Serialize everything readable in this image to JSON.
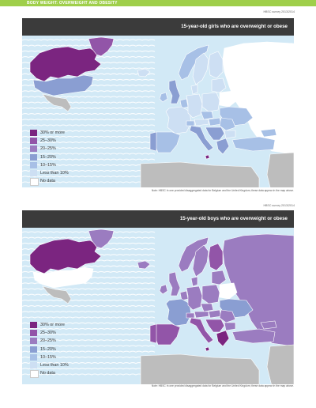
{
  "header": {
    "section_title": "BODY WEIGHT: OVERWEIGHT AND OBESITY"
  },
  "colors": {
    "accent_bar": "#9fcf4a",
    "title_bar": "#3b3b3b",
    "ocean": "#d2e9f6",
    "no_data": "#ffffff",
    "non_hbsc": "#bdbdbd"
  },
  "legend": {
    "items": [
      {
        "label": "30% or more",
        "color": "#7b2580"
      },
      {
        "label": "25–30%",
        "color": "#9255a8"
      },
      {
        "label": "20–25%",
        "color": "#9b7cc0"
      },
      {
        "label": "15–20%",
        "color": "#8a9ed2"
      },
      {
        "label": "10–15%",
        "color": "#a7c0e6"
      },
      {
        "label": "Less than 10%",
        "color": "#cddff3"
      },
      {
        "label": "No data",
        "color": "#ffffff"
      }
    ]
  },
  "maps": [
    {
      "survey": "HBSC survey 2013/2014",
      "title": "15-year-old girls who are overweight or obese",
      "note": "Note: HBSC In one provided disaggregated data for Belgium and the United Kingdom; these data appear in the map above.",
      "regions": {
        "canada": 0,
        "greenland": 1,
        "usa": 3,
        "mexico": 7,
        "iceland": 5,
        "norway": 4,
        "sweden": 5,
        "finland": 5,
        "russia": 6,
        "ireland": 4,
        "uk": 3,
        "france": 5,
        "spain": 4,
        "portugal": 3,
        "benelux": 4,
        "germany": 5,
        "poland": 5,
        "baltics": 5,
        "belarus": 6,
        "ukraine": 4,
        "czech": 4,
        "austria": 5,
        "switzerland": 4,
        "italy": 3,
        "balkans": 3,
        "hungary": 4,
        "romania": 4,
        "bulgaria": 5,
        "greece": 3,
        "turkey": 4,
        "caucasus": 4,
        "denmark": 5,
        "malta": 0,
        "africa": 7,
        "middle_east": 7
      }
    },
    {
      "survey": "HBSC survey 2013/2014",
      "title": "15-year-old boys who are overweight or obese",
      "note": "Note: HBSC In one provided disaggregated data for Belgium and the United Kingdom; these data appear in the map above.",
      "regions": {
        "canada": 0,
        "greenland": 2,
        "usa": 6,
        "mexico": 7,
        "iceland": 2,
        "norway": 2,
        "sweden": 2,
        "finland": 1,
        "russia": 2,
        "ireland": 2,
        "uk": 2,
        "france": 3,
        "spain": 1,
        "portugal": 1,
        "benelux": 2,
        "germany": 2,
        "poland": 2,
        "baltics": 2,
        "belarus": 6,
        "ukraine": 3,
        "czech": 2,
        "austria": 2,
        "switzerland": 2,
        "italy": 1,
        "balkans": 1,
        "hungary": 2,
        "romania": 2,
        "bulgaria": 2,
        "greece": 0,
        "turkey": 2,
        "caucasus": 2,
        "denmark": 2,
        "malta": 0,
        "africa": 7,
        "middle_east": 7
      }
    }
  ]
}
